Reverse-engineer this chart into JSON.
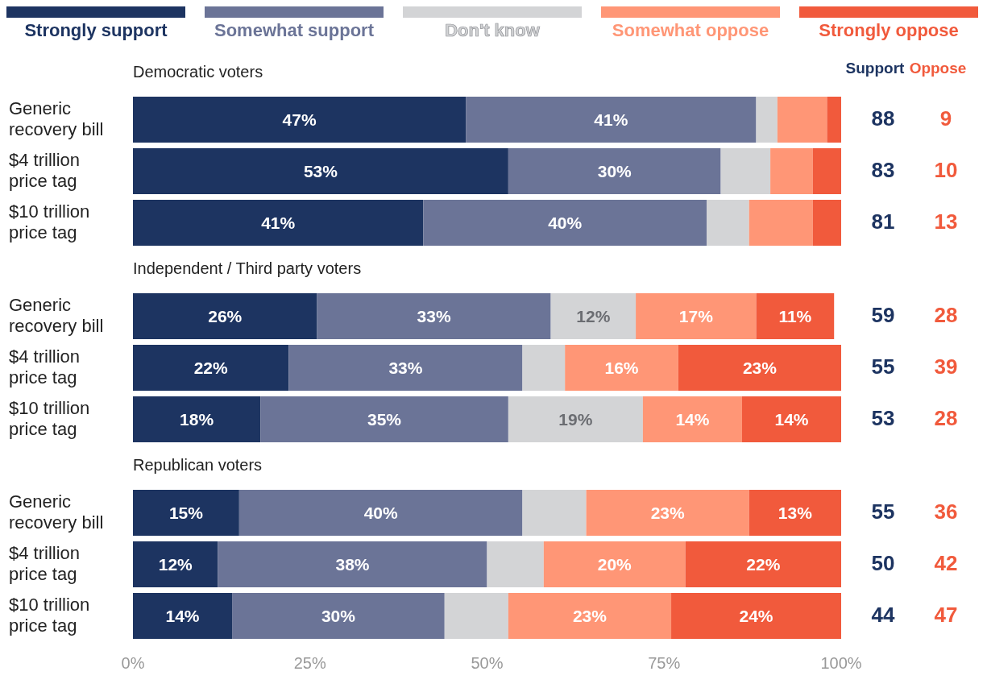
{
  "chart_data": [
    {
      "type": "bar",
      "orientation": "horizontal",
      "stacked": true,
      "title": "Democratic voters",
      "legend": "top",
      "tick_labels": "y",
      "xlim": [
        0,
        100
      ],
      "categories": [
        "Generic recovery bill",
        "$4 trillion price tag",
        "$10 trillion price tag"
      ],
      "series": [
        {
          "name": "Strongly support",
          "color": "#1d3461",
          "values": [
            47,
            53,
            41
          ],
          "value_labels": [
            "47%",
            "53%",
            "41%"
          ]
        },
        {
          "name": "Somewhat support",
          "color": "#6b7497",
          "values": [
            41,
            30,
            40
          ],
          "value_labels": [
            "41%",
            "30%",
            "40%"
          ]
        },
        {
          "name": "Don't know",
          "color": "#d3d4d6",
          "values": [
            3,
            7,
            6
          ],
          "value_labels": [
            null,
            null,
            null
          ]
        },
        {
          "name": "Somewhat oppose",
          "color": "#ff9676",
          "values": [
            7,
            6,
            9
          ],
          "value_labels": [
            null,
            null,
            null
          ]
        },
        {
          "name": "Strongly oppose",
          "color": "#f15a3c",
          "values": [
            2,
            4,
            4
          ],
          "value_labels": [
            null,
            null,
            null
          ]
        }
      ],
      "annotations": [
        "Support",
        "Oppose",
        "88",
        "9",
        "83",
        "10",
        "81",
        "13"
      ]
    },
    {
      "type": "bar",
      "orientation": "horizontal",
      "stacked": true,
      "title": "Independent / Third party voters",
      "tick_labels": "y",
      "xlim": [
        0,
        100
      ],
      "categories": [
        "Generic recovery bill",
        "$4 trillion price tag",
        "$10 trillion price tag"
      ],
      "series": [
        {
          "color": "#1d3461",
          "values": [
            26,
            22,
            18
          ],
          "value_labels": [
            "26%",
            "22%",
            "18%"
          ]
        },
        {
          "color": "#6b7497",
          "values": [
            33,
            33,
            35
          ],
          "value_labels": [
            "33%",
            "33%",
            "35%"
          ]
        },
        {
          "color": "#d3d4d6",
          "values": [
            12,
            6,
            19
          ],
          "value_labels": [
            "12%",
            null,
            "19%"
          ]
        },
        {
          "color": "#ff9676",
          "values": [
            17,
            16,
            14
          ],
          "value_labels": [
            "17%",
            "16%",
            "14%"
          ]
        },
        {
          "color": "#f15a3c",
          "values": [
            11,
            23,
            14
          ],
          "value_labels": [
            "11%",
            "23%",
            "14%"
          ]
        }
      ],
      "annotations": [
        "59",
        "28",
        "55",
        "39",
        "53",
        "28"
      ]
    },
    {
      "type": "bar",
      "orientation": "horizontal",
      "stacked": true,
      "title": "Republican voters",
      "xlim": [
        0,
        100
      ],
      "xticks": [
        {
          "value": 0,
          "label": "0%"
        },
        {
          "value": 25,
          "label": "25%"
        },
        {
          "value": 50,
          "label": "50%"
        },
        {
          "value": 75,
          "label": "75%"
        },
        {
          "value": 100,
          "label": "100%"
        }
      ],
      "categories": [
        "Generic recovery bill",
        "$4 trillion price tag",
        "$10 trillion price tag"
      ],
      "series": [
        {
          "color": "#1d3461",
          "values": [
            15,
            12,
            14
          ],
          "value_labels": [
            "15%",
            "12%",
            "14%"
          ]
        },
        {
          "color": "#6b7497",
          "values": [
            40,
            38,
            30
          ],
          "value_labels": [
            "40%",
            "38%",
            "30%"
          ]
        },
        {
          "color": "#d3d4d6",
          "values": [
            9,
            8,
            9
          ],
          "value_labels": [
            null,
            null,
            null
          ]
        },
        {
          "color": "#ff9676",
          "values": [
            23,
            20,
            23
          ],
          "value_labels": [
            "23%",
            "20%",
            "23%"
          ]
        },
        {
          "color": "#f15a3c",
          "values": [
            13,
            22,
            24
          ],
          "value_labels": [
            "13%",
            "22%",
            "24%"
          ]
        }
      ],
      "annotations": [
        "55",
        "36",
        "50",
        "42",
        "44",
        "47"
      ]
    }
  ]
}
